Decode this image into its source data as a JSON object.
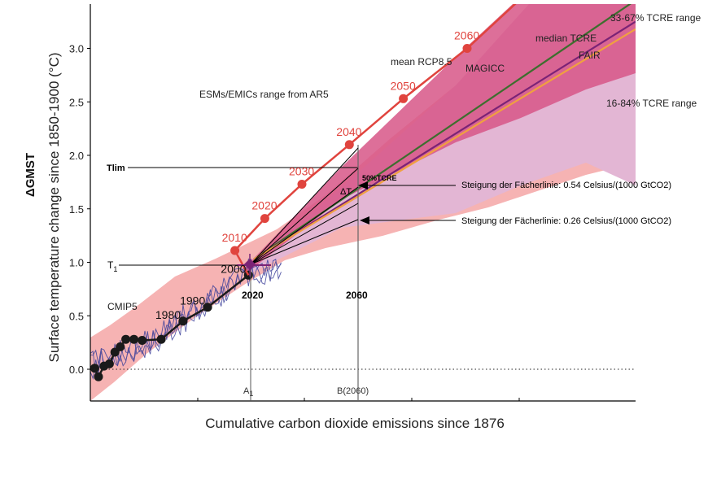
{
  "chart_data": {
    "type": "line",
    "title": "",
    "xlabel": "Cumulative carbon dioxide emissions since 1876",
    "ylabel_top": "ΔGMST",
    "ylabel": "Surface temperature change since 1850-1900 (°C)",
    "xlim": [
      0,
      100
    ],
    "ylim": [
      -0.3,
      3.4
    ],
    "y_ticks": [
      "0.0",
      "0.5",
      "1.0",
      "1.5",
      "2.0",
      "2.5",
      "3.0"
    ],
    "y_tick_values": [
      0.0,
      0.5,
      1.0,
      1.5,
      2.0,
      2.5,
      3.0
    ],
    "grid": false,
    "series": [
      {
        "name": "mean RCP8.5",
        "color": "#e0443e",
        "x": [
          26.5,
          32.0,
          38.8,
          47.5,
          57.4,
          69.1
        ],
        "y": [
          1.11,
          1.41,
          1.73,
          2.1,
          2.53,
          3.0
        ],
        "point_labels": [
          "2010",
          "2020",
          "2030",
          "2040",
          "2050",
          "2060"
        ]
      },
      {
        "name": "",
        "color": "#1a1a1a",
        "x": [
          0.8,
          1.5,
          2.5,
          3.5,
          4.5,
          5.5,
          6.5,
          8.0,
          9.5,
          13.0,
          17.0,
          21.5,
          29.0
        ],
        "y": [
          0.01,
          -0.07,
          0.03,
          0.05,
          0.16,
          0.21,
          0.28,
          0.28,
          0.27,
          0.28,
          0.45,
          0.58,
          0.88
        ],
        "point_labels": [
          "",
          "",
          "",
          "",
          "",
          "",
          "",
          "",
          "",
          "",
          "1980",
          "1990",
          "2000"
        ]
      },
      {
        "name": "MAGICC",
        "color": "#3d6e2e",
        "x": [
          30,
          100
        ],
        "y": [
          1.03,
          3.45
        ]
      },
      {
        "name": "median TCRE",
        "color": "#7b2376",
        "x": [
          30,
          100
        ],
        "y": [
          1.03,
          3.25
        ]
      },
      {
        "name": "FAIR",
        "color": "#f0a040",
        "x": [
          30,
          100
        ],
        "y": [
          1.03,
          3.18
        ]
      }
    ],
    "bands": [
      {
        "name": "ESMs/EMICs range from AR5",
        "color": "#f6b3b3"
      },
      {
        "name": "33-67% TCRE range",
        "color": "#d75687"
      },
      {
        "name": "16-84% TCRE range",
        "color": "#e3b6d4"
      },
      {
        "name": "CMIP5",
        "color": "#3b3f9a"
      }
    ],
    "annotations": {
      "tlim": "Tlim",
      "t1_main": "T",
      "t1_sub": "1",
      "tcre_50": "50%TCRE",
      "delta_t": "ΔT",
      "slope_high": "Steigung der Fächerlinie: 0.54 Celsius/(1000 GtCO2)",
      "slope_low": "Steigung der Fächerlinie: 0.26 Celsius/(1000 GtCO2)",
      "year_2020": "2020",
      "year_2060": "2060",
      "a1_main": "A",
      "a1_sub": "1",
      "b_label": "B(2060)"
    }
  }
}
